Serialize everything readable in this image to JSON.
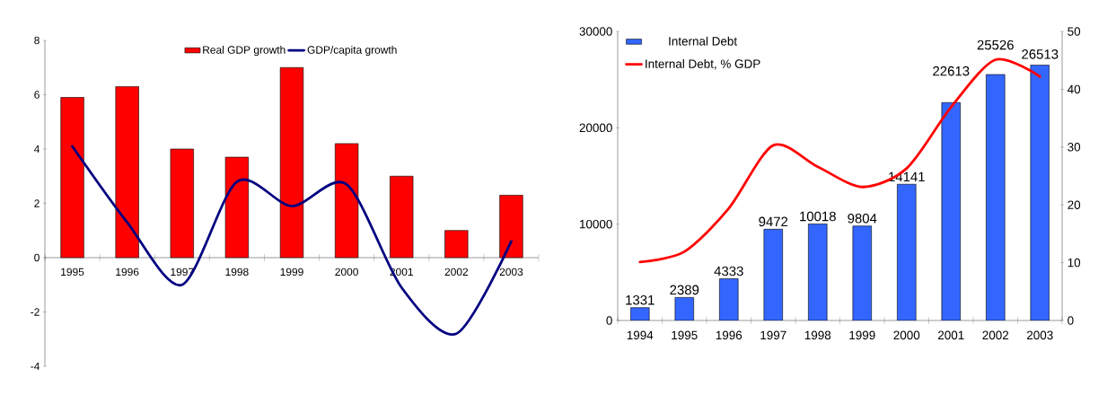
{
  "chart_data": [
    {
      "type": "bar",
      "categories": [
        "1995",
        "1996",
        "1997",
        "1998",
        "1999",
        "2000",
        "2001",
        "2002",
        "2003"
      ],
      "series": [
        {
          "name": "Real GDP growth",
          "color": "#ff0000",
          "values": [
            5.9,
            6.3,
            4.0,
            3.7,
            7.0,
            4.2,
            3.0,
            1.0,
            2.3
          ]
        },
        {
          "name": "GDP/capita growth",
          "type": "line",
          "color": "#000080",
          "values": [
            4.1,
            1.3,
            -1.0,
            2.8,
            1.9,
            2.7,
            -1.1,
            -2.8,
            0.6
          ]
        }
      ],
      "ylim": [
        -4,
        8
      ],
      "yticks": [
        -4,
        -2,
        0,
        2,
        4,
        6,
        8
      ],
      "legend": "top"
    },
    {
      "type": "bar",
      "categories": [
        "1994",
        "1995",
        "1996",
        "1997",
        "1998",
        "1999",
        "2000",
        "2001",
        "2002",
        "2003"
      ],
      "series": [
        {
          "name": "Internal Debt",
          "color": "#3366ff",
          "values": [
            1331,
            2389,
            4333,
            9472,
            10018,
            9804,
            14141,
            22613,
            25526,
            26513
          ],
          "value_labels": [
            "1331",
            "2389",
            "4333",
            "9472",
            "10018",
            "9804",
            "14141",
            "22613",
            "25526",
            "26513"
          ]
        },
        {
          "name": "Internal Debt, % GDP",
          "type": "line",
          "axis": "y2",
          "color": "#ff0000",
          "values": [
            10.1,
            11.9,
            19.4,
            30.3,
            26.6,
            23.1,
            26.3,
            36.9,
            45.1,
            42.2
          ]
        }
      ],
      "ylim": [
        0,
        30000
      ],
      "yticks": [
        0,
        10000,
        20000,
        30000
      ],
      "y2lim": [
        0,
        50
      ],
      "y2ticks": [
        0,
        10,
        20,
        30,
        40,
        50
      ],
      "legend": "top left"
    }
  ]
}
